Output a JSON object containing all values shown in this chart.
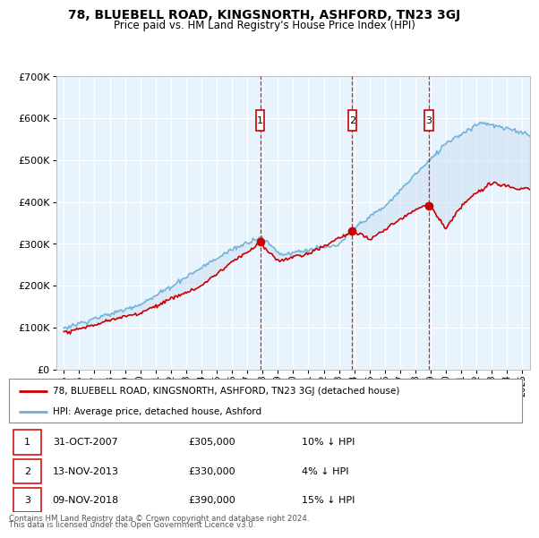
{
  "title": "78, BLUEBELL ROAD, KINGSNORTH, ASHFORD, TN23 3GJ",
  "subtitle": "Price paid vs. HM Land Registry's House Price Index (HPI)",
  "hpi_color": "#6baed6",
  "price_color": "#cc0000",
  "transactions": [
    {
      "label": "1",
      "date": "31-OCT-2007",
      "price": 305000,
      "note": "10% ↓ HPI",
      "x_year": 2007.85
    },
    {
      "label": "2",
      "date": "13-NOV-2013",
      "price": 330000,
      "note": "4% ↓ HPI",
      "x_year": 2013.87
    },
    {
      "label": "3",
      "date": "09-NOV-2018",
      "price": 390000,
      "note": "15% ↓ HPI",
      "x_year": 2018.87
    }
  ],
  "legend_property_label": "78, BLUEBELL ROAD, KINGSNORTH, ASHFORD, TN23 3GJ (detached house)",
  "legend_hpi_label": "HPI: Average price, detached house, Ashford",
  "footer1": "Contains HM Land Registry data © Crown copyright and database right 2024.",
  "footer2": "This data is licensed under the Open Government Licence v3.0.",
  "ylim": [
    0,
    700000
  ],
  "xlim_start": 1994.5,
  "xlim_end": 2025.5,
  "shade_fill_color": "#c6dbef",
  "shade_alpha": 0.45
}
